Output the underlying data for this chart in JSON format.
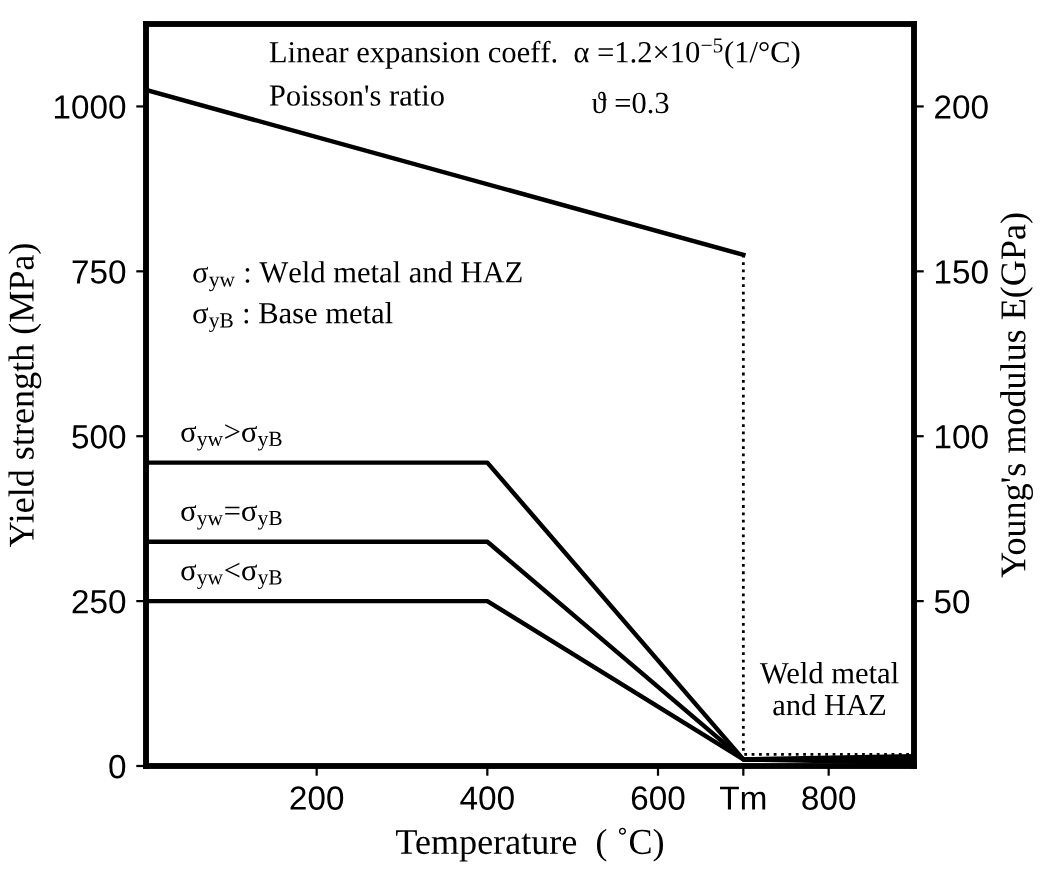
{
  "chart_data": {
    "type": "line",
    "xlabel": "Temperature  ( ˚C)",
    "ylabel": "Yield strength (MPa)",
    "y2label": "Young's modulus E(GPa)",
    "xlim": [
      0,
      900
    ],
    "xticks": [
      200,
      400,
      600,
      {
        "value": 700,
        "label": "Tm"
      },
      800
    ],
    "ylim": [
      0,
      1125
    ],
    "yticks": [
      0,
      250,
      500,
      750,
      1000
    ],
    "y2lim": [
      0,
      225
    ],
    "y2ticks": [
      50,
      100,
      150,
      200
    ],
    "grid": false,
    "legend": false,
    "marker": "none",
    "series": [
      {
        "name": "σ$_{yw}$>σ$_{yB}$",
        "color": "#000000",
        "x": [
          0,
          400,
          700,
          900
        ],
        "values": [
          460,
          460,
          10,
          15
        ]
      },
      {
        "name": "σ$_{yw}$=σ$_{yB}$",
        "color": "#000000",
        "x": [
          0,
          400,
          700,
          900
        ],
        "values": [
          340,
          340,
          10,
          10
        ]
      },
      {
        "name": "σ$_{yw}$<σ$_{yB}$",
        "color": "#000000",
        "x": [
          0,
          400,
          700,
          900
        ],
        "values": [
          250,
          250,
          10,
          5
        ]
      },
      {
        "color": "#000000",
        "axis": "y2",
        "x": [
          0,
          700
        ],
        "values": [
          205,
          155
        ]
      },
      {
        "color": "#000000",
        "axis": "y2",
        "line_style": "dotted",
        "x": [
          700,
          700,
          900
        ],
        "values": [
          155,
          3.5,
          3.5
        ]
      }
    ],
    "annotations": [
      "Linear expansion coeff.  α =1.2×10$^{−5}$(1/°C)",
      "Poisson's ratio",
      "ϑ =0.3",
      "σ$_{yw}$ : Weld metal and HAZ",
      "σ$_{yB}$ : Base metal",
      "Weld metal\nand HAZ"
    ]
  }
}
